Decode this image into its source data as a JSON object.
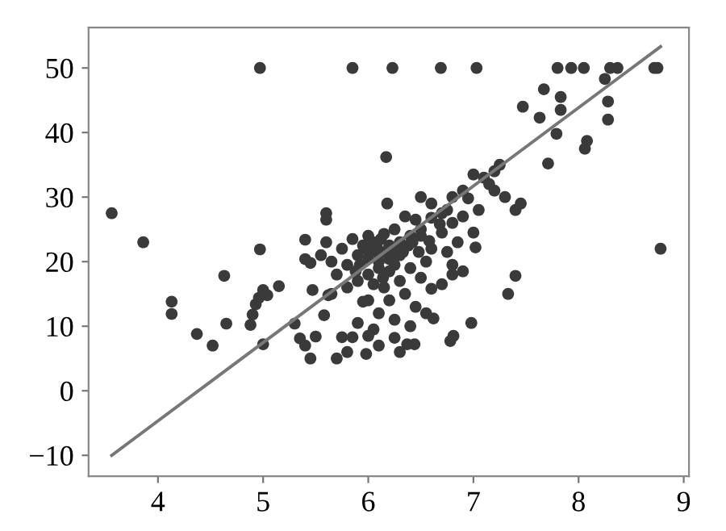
{
  "chart_data": {
    "type": "scatter",
    "xlim": [
      3.34,
      9.05
    ],
    "ylim": [
      -13.25,
      56.25
    ],
    "xticks": [
      4,
      5,
      6,
      7,
      8,
      9
    ],
    "yticks": [
      -10,
      0,
      10,
      20,
      30,
      40,
      50
    ],
    "grid": false,
    "marker": "circle",
    "series": [
      {
        "color": "#3a3a3a",
        "x": [
          5.92,
          5.98,
          6.02,
          6.08,
          6.12,
          6.16,
          6.22,
          6.28,
          6.33,
          6.38,
          6.42,
          6.05,
          6.14,
          5.88,
          6.25,
          6.48,
          6.58,
          6.68,
          6.75,
          3.56,
          3.86,
          4.13,
          4.13,
          4.37,
          4.52,
          4.63,
          4.65,
          4.88,
          4.9,
          4.93,
          4.96,
          4.97,
          4.97,
          5.0,
          5.0,
          5.04,
          5.15,
          5.3,
          5.35,
          5.4,
          5.45,
          5.5,
          5.4,
          5.45,
          5.4,
          5.6,
          5.6,
          5.6,
          5.7,
          5.75,
          5.8,
          5.85,
          5.85,
          5.47,
          5.58,
          5.62,
          6.23,
          6.69,
          7.03,
          7.8,
          7.93,
          8.05,
          8.3,
          8.37,
          8.72,
          8.75,
          8.25,
          8.28,
          8.28,
          7.67,
          7.83,
          7.83,
          7.47,
          7.63,
          7.79,
          8.08,
          8.06,
          7.71,
          8.78,
          7.4,
          7.33,
          6.98,
          6.81,
          6.78,
          6.37,
          6.44,
          5.98,
          6.17,
          7.1,
          7.15,
          7.2,
          7.0,
          6.9,
          6.8,
          7.3,
          7.4,
          7.45,
          7.05,
          6.95,
          6.6,
          6.5,
          6.45,
          6.5,
          6.8,
          7.0,
          6.85,
          6.75,
          7.02,
          6.6,
          6.55,
          6.4,
          6.3,
          6.35,
          6.45,
          6.55,
          6.62,
          6.4,
          6.25,
          6.2,
          6.15,
          6.1,
          6.0,
          6.05,
          5.9,
          5.95,
          6.3,
          6.2,
          6.1,
          6.0,
          5.9,
          5.8,
          5.7,
          5.75,
          5.85,
          6.0,
          6.15,
          6.25,
          6.3,
          6.4,
          6.5,
          6.1,
          6.2,
          5.9,
          5.8,
          5.65,
          6.0,
          6.1,
          6.2,
          5.95,
          6.05,
          6.35,
          6.6,
          6.7,
          6.9,
          7.2,
          7.25,
          6.18,
          5.55,
          5.65,
          6.7,
          6.8,
          6.5,
          6.6,
          6.7,
          6.8,
          6.9,
          6.3,
          6.25,
          6.1,
          6.0
        ],
        "values": [
          19.5,
          22,
          21.8,
          22.5,
          23.5,
          21.5,
          21,
          22,
          21.5,
          22.5,
          23,
          16.5,
          17.5,
          18.5,
          19.5,
          21.5,
          23.2,
          25.8,
          28,
          27.5,
          23,
          13.8,
          11.9,
          8.8,
          7,
          17.8,
          10.4,
          10.2,
          11.8,
          13.4,
          14.4,
          21.9,
          50,
          7.2,
          15.6,
          14.8,
          16.2,
          10.4,
          8.1,
          7,
          5,
          8.4,
          20.4,
          19.8,
          23.4,
          27.5,
          26.5,
          23,
          5,
          8.3,
          6,
          8.3,
          50,
          15.6,
          11.7,
          14.8,
          50,
          50,
          50,
          50,
          50,
          50,
          50,
          50,
          50,
          50,
          48.3,
          44.8,
          42,
          46.7,
          45.5,
          43.5,
          44,
          42.3,
          39.8,
          38.7,
          37.5,
          35.2,
          22,
          17.8,
          15,
          10.5,
          8.5,
          7.7,
          7.2,
          7.2,
          5.7,
          36.2,
          33,
          32,
          34,
          33.5,
          31,
          30,
          30,
          28,
          29,
          28,
          29.8,
          29,
          30,
          26.5,
          25,
          26,
          24.5,
          23,
          21.5,
          22.2,
          22,
          20,
          19,
          17,
          15,
          13,
          12,
          11.2,
          10,
          11,
          14,
          16,
          12,
          14,
          9.5,
          10.5,
          13.8,
          21,
          22.5,
          21.2,
          20.5,
          21,
          19.5,
          18,
          22,
          23.5,
          24,
          24.3,
          25,
          23,
          24,
          24,
          19,
          18.5,
          17,
          16,
          15,
          18,
          20,
          20.4,
          22.5,
          23,
          27,
          26.8,
          27.5,
          27,
          31,
          35,
          29,
          21,
          20,
          24.5,
          19.5,
          17.5,
          15.8,
          16.5,
          18,
          18.5,
          6,
          8.2,
          7,
          8.5
        ]
      },
      {
        "type": "line",
        "color": "#777777",
        "x": [
          3.56,
          8.78
        ],
        "values": [
          -10,
          53.3
        ],
        "marker": "none",
        "line_style": "solid"
      }
    ]
  }
}
